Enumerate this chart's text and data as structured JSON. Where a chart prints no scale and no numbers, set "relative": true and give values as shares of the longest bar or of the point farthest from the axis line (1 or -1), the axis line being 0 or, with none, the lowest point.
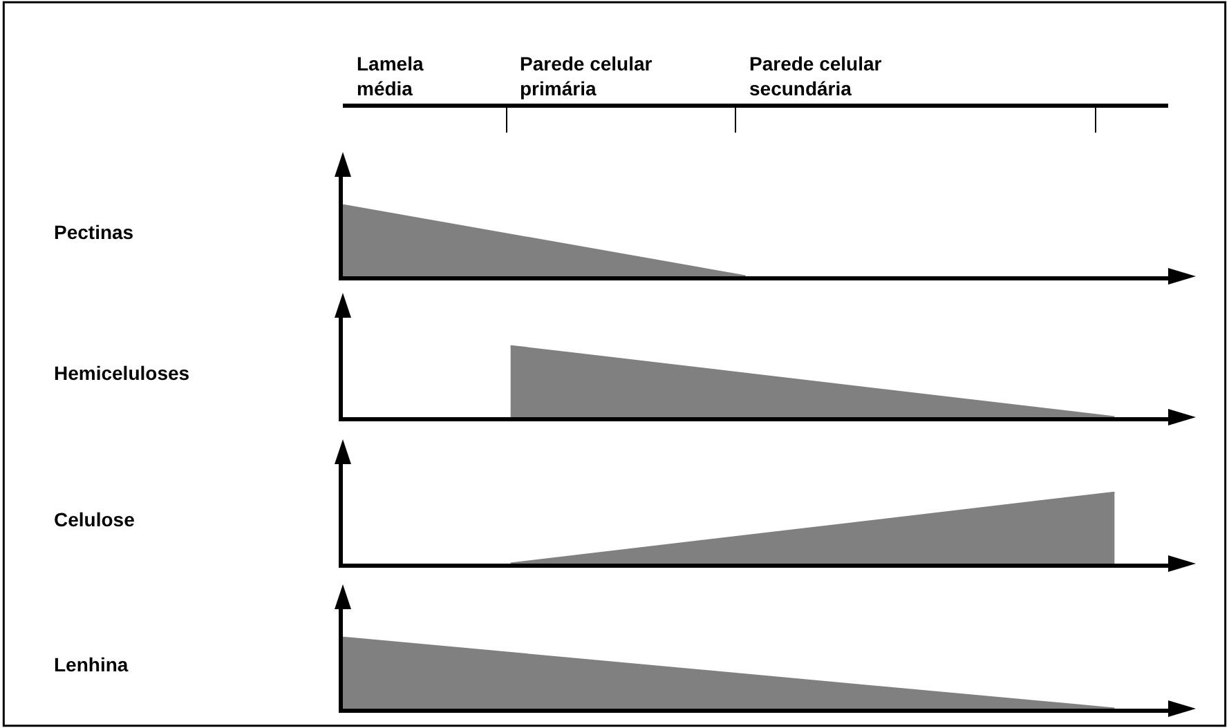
{
  "chart_data": [
    {
      "type": "area",
      "relative": true,
      "ylabel": "Pectinas",
      "categories": [
        null,
        null,
        null,
        null,
        null,
        null,
        null,
        null,
        null,
        null,
        null,
        null,
        null,
        null,
        null,
        null,
        null,
        null,
        null,
        null,
        null,
        null,
        null,
        null
      ],
      "values": [
        1,
        null,
        null,
        null,
        null,
        null,
        null,
        null,
        null,
        null,
        null,
        null,
        0,
        null,
        null,
        null,
        null,
        null,
        null,
        null,
        null,
        null,
        null,
        null
      ],
      "color": "#808080",
      "annotations": [
        "Lamela\nmédia",
        "Parede celular\nprimária",
        "Parede celular\nsecundária"
      ]
    },
    {
      "type": "area",
      "relative": true,
      "ylabel": "Hemiceluloses",
      "categories": [
        null,
        null,
        null,
        null,
        null,
        null,
        null,
        null,
        null,
        null,
        null,
        null,
        null,
        null,
        null,
        null,
        null,
        null,
        null,
        null,
        null,
        null,
        null,
        null
      ],
      "values": [
        null,
        null,
        null,
        null,
        null,
        1,
        null,
        null,
        null,
        null,
        null,
        null,
        null,
        null,
        null,
        null,
        null,
        null,
        null,
        null,
        null,
        null,
        null,
        0
      ],
      "color": "#808080"
    },
    {
      "type": "area",
      "relative": true,
      "ylabel": "Celulose",
      "categories": [
        null,
        null,
        null,
        null,
        null,
        null,
        null,
        null,
        null,
        null,
        null,
        null,
        null,
        null,
        null,
        null,
        null,
        null,
        null,
        null,
        null,
        null,
        null,
        null
      ],
      "values": [
        null,
        null,
        null,
        null,
        null,
        0,
        null,
        null,
        null,
        null,
        null,
        null,
        null,
        null,
        null,
        null,
        null,
        null,
        null,
        null,
        null,
        null,
        null,
        1
      ],
      "color": "#808080"
    },
    {
      "type": "area",
      "relative": true,
      "ylabel": "Lenhina",
      "categories": [
        null,
        null,
        null,
        null,
        null,
        null,
        null,
        null,
        null,
        null,
        null,
        null,
        null,
        null,
        null,
        null,
        null,
        null,
        null,
        null,
        null,
        null,
        null,
        null
      ],
      "values": [
        1,
        null,
        null,
        null,
        null,
        null,
        null,
        null,
        null,
        null,
        null,
        null,
        null,
        null,
        null,
        null,
        null,
        null,
        null,
        null,
        null,
        null,
        null,
        0
      ],
      "color": "#808080"
    }
  ]
}
